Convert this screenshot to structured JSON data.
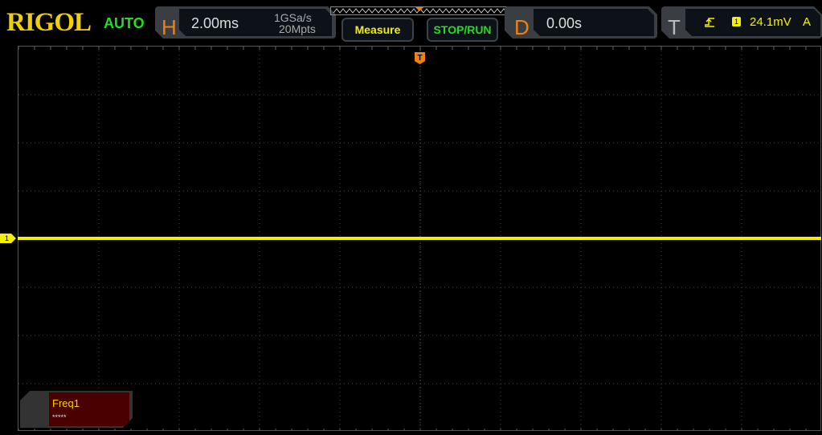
{
  "header": {
    "brand": "RIGOL",
    "mode": "AUTO",
    "horizontal": {
      "label": "H",
      "timebase": "2.00ms",
      "sample_rate": "1GSa/s",
      "memory_depth": "20Mpts"
    },
    "measure_button": "Measure",
    "stop_run_button": "STOP/RUN",
    "delay": {
      "label": "D",
      "value": "0.00s"
    },
    "trigger": {
      "label": "T",
      "edge_icon": "rising-edge-icon",
      "source": "1",
      "level": "24.1mV",
      "sweep": "A"
    }
  },
  "channel": {
    "label": "1",
    "color": "#f5f000"
  },
  "trigger_marker": "T",
  "measurement": {
    "name": "Freq1",
    "value": "*****"
  },
  "colors": {
    "accent_orange": "#f08010",
    "brand_yellow": "#f0d000",
    "green": "#22dd22"
  }
}
